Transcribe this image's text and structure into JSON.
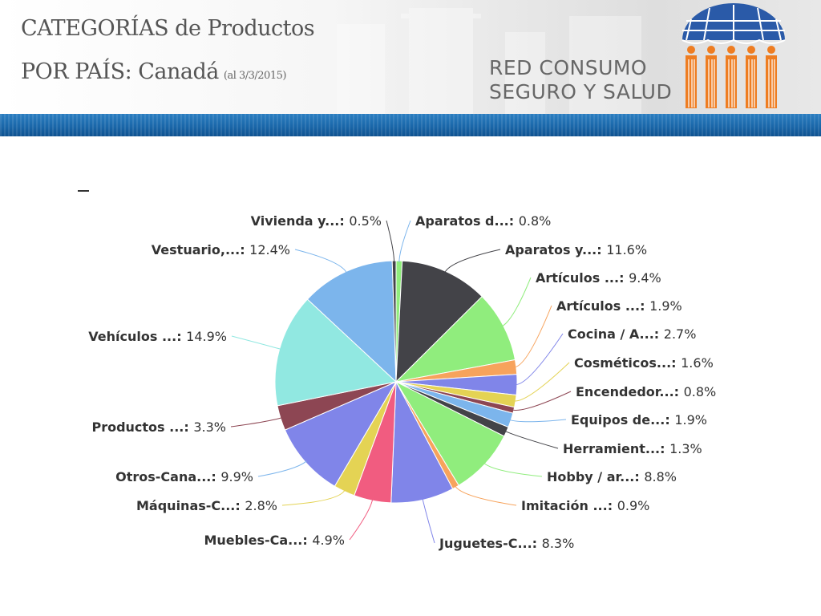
{
  "header": {
    "title_line1": "CATEGORÍAS de Productos",
    "title_line2": "POR PAÍS: Canadá",
    "title_date": "(al 3/3/2015)",
    "brand_line1": "RED CONSUMO",
    "brand_line2": "SEGURO Y SALUD",
    "logo_colors": {
      "umbrella": "#2a5aa8",
      "figures": "#ee7d22"
    }
  },
  "chart_data": {
    "type": "pie",
    "title": "-",
    "label_separator": ": ",
    "slices": [
      {
        "label": "Aparatos d...",
        "value": 0.8,
        "display": "0.8%",
        "color": "#90ed7d",
        "line_color": "#7cb5ec"
      },
      {
        "label": "Aparatos y...",
        "value": 11.6,
        "display": "11.6%",
        "color": "#434348",
        "line_color": "#434348"
      },
      {
        "label": "Artículos ...",
        "value": 9.4,
        "display": "9.4%",
        "color": "#90ed7d",
        "line_color": "#90ed7d"
      },
      {
        "label": "Artículos ...",
        "value": 1.9,
        "display": "1.9%",
        "color": "#f7a35c",
        "line_color": "#f7a35c"
      },
      {
        "label": "Cocina / A...",
        "value": 2.7,
        "display": "2.7%",
        "color": "#8085e9",
        "line_color": "#8085e9"
      },
      {
        "label": "Cosméticos...",
        "value": 1.6,
        "display": "1.6%",
        "color": "#e4d354",
        "line_color": "#e4d354"
      },
      {
        "label": "Encendedor...",
        "value": 0.8,
        "display": "0.8%",
        "color": "#8d4653",
        "line_color": "#8d4653"
      },
      {
        "label": "Equipos de...",
        "value": 1.9,
        "display": "1.9%",
        "color": "#7cb5ec",
        "line_color": "#7cb5ec"
      },
      {
        "label": "Herramient...",
        "value": 1.3,
        "display": "1.3%",
        "color": "#434348",
        "line_color": "#434348"
      },
      {
        "label": "Hobby / ar...",
        "value": 8.8,
        "display": "8.8%",
        "color": "#90ed7d",
        "line_color": "#90ed7d"
      },
      {
        "label": "Imitación ...",
        "value": 0.9,
        "display": "0.9%",
        "color": "#f7a35c",
        "line_color": "#f7a35c"
      },
      {
        "label": "Juguetes-C...",
        "value": 8.3,
        "display": "8.3%",
        "color": "#8085e9",
        "line_color": "#8085e9"
      },
      {
        "label": "Muebles-Ca...",
        "value": 4.9,
        "display": "4.9%",
        "color": "#f15c80",
        "line_color": "#f15c80"
      },
      {
        "label": "Máquinas-C...",
        "value": 2.8,
        "display": "2.8%",
        "color": "#e4d354",
        "line_color": "#e4d354"
      },
      {
        "label": "Otros-Cana...",
        "value": 9.9,
        "display": "9.9%",
        "color": "#8085e9",
        "line_color": "#7cb5ec"
      },
      {
        "label": "Productos ...",
        "value": 3.3,
        "display": "3.3%",
        "color": "#8d4653",
        "line_color": "#8d4653"
      },
      {
        "label": "Vehículos ...",
        "value": 14.9,
        "display": "14.9%",
        "color": "#91e8e1",
        "line_color": "#91e8e1"
      },
      {
        "label": "Vestuario,...",
        "value": 12.4,
        "display": "12.4%",
        "color": "#7cb5ec",
        "line_color": "#7cb5ec"
      },
      {
        "label": "Vivienda y...",
        "value": 0.5,
        "display": "0.5%",
        "color": "#434348",
        "line_color": "#434348"
      }
    ]
  }
}
